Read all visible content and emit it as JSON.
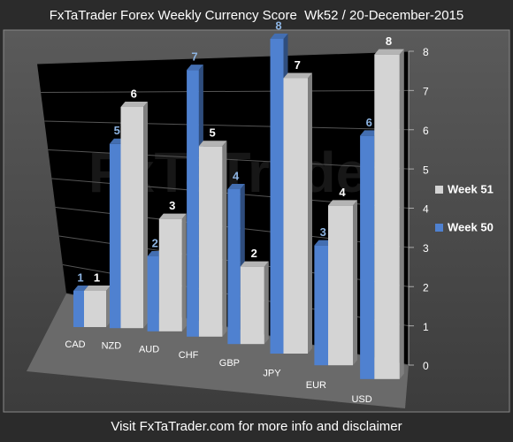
{
  "chart_data": {
    "type": "bar3d",
    "title": "FxTaTrader Forex Weekly Currency Score  Wk52 / 20-December-2015",
    "watermark": "FxTaTrader",
    "footer": "Visit FxTaTrader.com for more info and disclaimer",
    "categories": [
      "CAD",
      "NZD",
      "AUD",
      "CHF",
      "GBP",
      "JPY",
      "EUR",
      "USD"
    ],
    "series": [
      {
        "name": "Week 50",
        "color": "#4f81d0",
        "label_color": "#8db4e2",
        "values": [
          1,
          5,
          2,
          7,
          4,
          8,
          3,
          6
        ]
      },
      {
        "name": "Week 51",
        "color": "#d4d4d4",
        "label_color": "#ffffff",
        "values": [
          1,
          6,
          3,
          5,
          2,
          7,
          4,
          8
        ]
      }
    ],
    "ylim": [
      0,
      8
    ],
    "yticks": [
      0,
      1,
      2,
      3,
      4,
      5,
      6,
      7,
      8
    ],
    "grid": true,
    "legend": "right"
  }
}
